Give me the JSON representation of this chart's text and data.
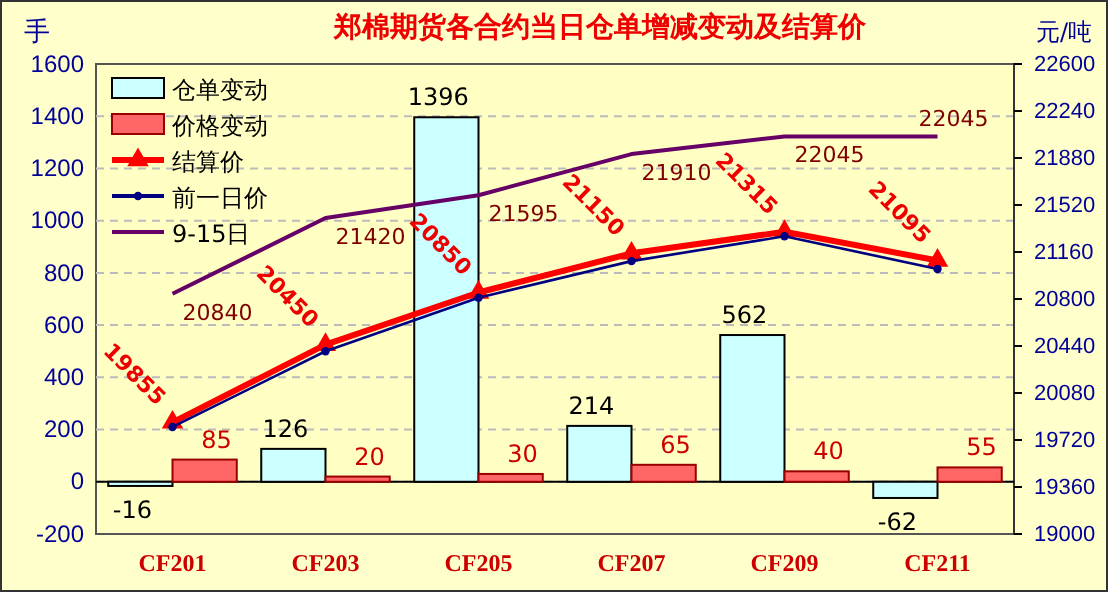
{
  "chart_data": {
    "type": "bar",
    "title": "郑棉期货各合约当日仓单增减变动及结算价",
    "ylabel": "手",
    "y2label": "元/吨",
    "categories": [
      "CF201",
      "CF203",
      "CF205",
      "CF207",
      "CF209",
      "CF211"
    ],
    "series": [
      {
        "name": "仓单变动",
        "color": "#ccffff",
        "values": [
          -16,
          126,
          1396,
          214,
          562,
          -62
        ],
        "value_labels": [
          "-16",
          "126",
          "1396",
          "214",
          "562",
          "-62"
        ]
      },
      {
        "name": "价格变动",
        "color": "#ff6666",
        "values": [
          85,
          20,
          30,
          65,
          40,
          55
        ],
        "value_labels": [
          "85",
          "20",
          "30",
          "65",
          "40",
          "55"
        ]
      },
      {
        "name": "结算价",
        "type": "line",
        "axis": "y2",
        "color": "#ff0000",
        "marker": "triangle",
        "values": [
          19855,
          20450,
          20850,
          21150,
          21315,
          21095
        ],
        "value_labels": [
          "19855",
          "20450",
          "20850",
          "21150",
          "21315",
          "21095"
        ]
      },
      {
        "name": "前一日价",
        "type": "line",
        "axis": "y2",
        "color": "#000080",
        "marker": "circle",
        "values": [
          19820,
          20400,
          20810,
          21090,
          21280,
          21030
        ]
      },
      {
        "name": "9-15日",
        "type": "line",
        "axis": "y2",
        "color": "#660066",
        "marker": "none",
        "values": [
          20840,
          21420,
          21595,
          21910,
          22045,
          22045
        ],
        "value_labels": [
          "20840",
          "21420",
          "21595",
          "21910",
          "22045",
          "22045"
        ]
      }
    ],
    "ylim": [
      -200,
      1600
    ],
    "yticks": [
      -200,
      0,
      200,
      400,
      600,
      800,
      1000,
      1200,
      1400,
      1600
    ],
    "y2lim": [
      19000,
      22600
    ],
    "y2ticks": [
      19000,
      19360,
      19720,
      20080,
      20440,
      20800,
      21160,
      21520,
      21880,
      22240,
      22600
    ],
    "grid": "y",
    "legend": "top left"
  }
}
